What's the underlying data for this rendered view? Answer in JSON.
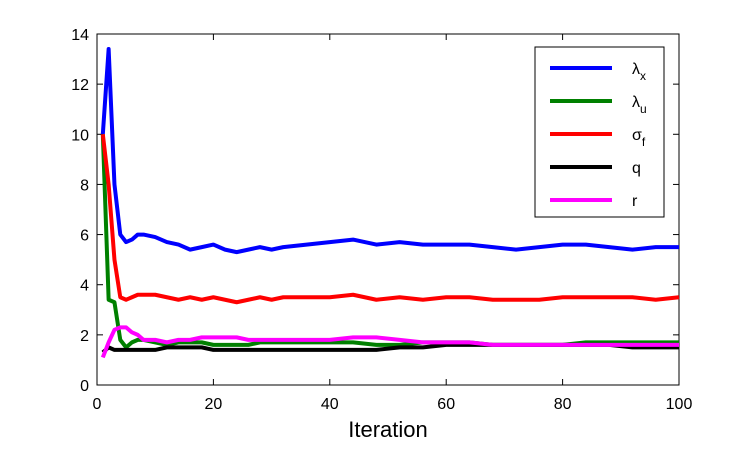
{
  "chart_data": {
    "type": "line",
    "xlabel": "Iteration",
    "x": [
      1,
      2,
      3,
      4,
      5,
      6,
      7,
      8,
      10,
      12,
      14,
      16,
      18,
      20,
      22,
      24,
      26,
      28,
      30,
      32,
      36,
      40,
      44,
      48,
      52,
      56,
      60,
      64,
      68,
      72,
      76,
      80,
      84,
      88,
      92,
      96,
      100
    ],
    "xlim": [
      0,
      100
    ],
    "xticks": [
      0,
      20,
      40,
      60,
      80,
      100
    ],
    "ylim": [
      0,
      14
    ],
    "yticks": [
      0,
      2,
      4,
      6,
      8,
      10,
      12,
      14
    ],
    "grid": false,
    "legend": "upper right",
    "series": [
      {
        "name": "λx",
        "color": "#0000ff",
        "values": [
          10,
          13.4,
          8,
          6,
          5.7,
          5.8,
          6.0,
          6.0,
          5.9,
          5.7,
          5.6,
          5.4,
          5.5,
          5.6,
          5.4,
          5.3,
          5.4,
          5.5,
          5.4,
          5.5,
          5.6,
          5.7,
          5.8,
          5.6,
          5.7,
          5.6,
          5.6,
          5.6,
          5.5,
          5.4,
          5.5,
          5.6,
          5.6,
          5.5,
          5.4,
          5.5,
          5.5
        ]
      },
      {
        "name": "λu",
        "color": "#008000",
        "values": [
          10,
          3.4,
          3.3,
          1.8,
          1.5,
          1.7,
          1.8,
          1.8,
          1.7,
          1.6,
          1.7,
          1.7,
          1.7,
          1.6,
          1.6,
          1.6,
          1.6,
          1.7,
          1.7,
          1.7,
          1.7,
          1.7,
          1.7,
          1.6,
          1.6,
          1.7,
          1.7,
          1.7,
          1.6,
          1.6,
          1.6,
          1.6,
          1.7,
          1.7,
          1.7,
          1.7,
          1.7
        ]
      },
      {
        "name": "σf",
        "color": "#ff0000",
        "values": [
          10,
          8,
          5,
          3.5,
          3.4,
          3.5,
          3.6,
          3.6,
          3.6,
          3.5,
          3.4,
          3.5,
          3.4,
          3.5,
          3.4,
          3.3,
          3.4,
          3.5,
          3.4,
          3.5,
          3.5,
          3.5,
          3.6,
          3.4,
          3.5,
          3.4,
          3.5,
          3.5,
          3.4,
          3.4,
          3.4,
          3.5,
          3.5,
          3.5,
          3.5,
          3.4,
          3.5
        ]
      },
      {
        "name": "q",
        "color": "#000000",
        "values": [
          1.3,
          1.5,
          1.4,
          1.4,
          1.4,
          1.4,
          1.4,
          1.4,
          1.4,
          1.5,
          1.5,
          1.5,
          1.5,
          1.4,
          1.4,
          1.4,
          1.4,
          1.4,
          1.4,
          1.4,
          1.4,
          1.4,
          1.4,
          1.4,
          1.5,
          1.5,
          1.6,
          1.6,
          1.6,
          1.6,
          1.6,
          1.6,
          1.6,
          1.6,
          1.5,
          1.5,
          1.5
        ]
      },
      {
        "name": "r",
        "color": "#ff00ff",
        "values": [
          1.1,
          1.7,
          2.2,
          2.3,
          2.3,
          2.1,
          2.0,
          1.8,
          1.8,
          1.7,
          1.8,
          1.8,
          1.9,
          1.9,
          1.9,
          1.9,
          1.8,
          1.8,
          1.8,
          1.8,
          1.8,
          1.8,
          1.9,
          1.9,
          1.8,
          1.7,
          1.7,
          1.7,
          1.6,
          1.6,
          1.6,
          1.6,
          1.6,
          1.6,
          1.6,
          1.6,
          1.6
        ]
      }
    ]
  }
}
